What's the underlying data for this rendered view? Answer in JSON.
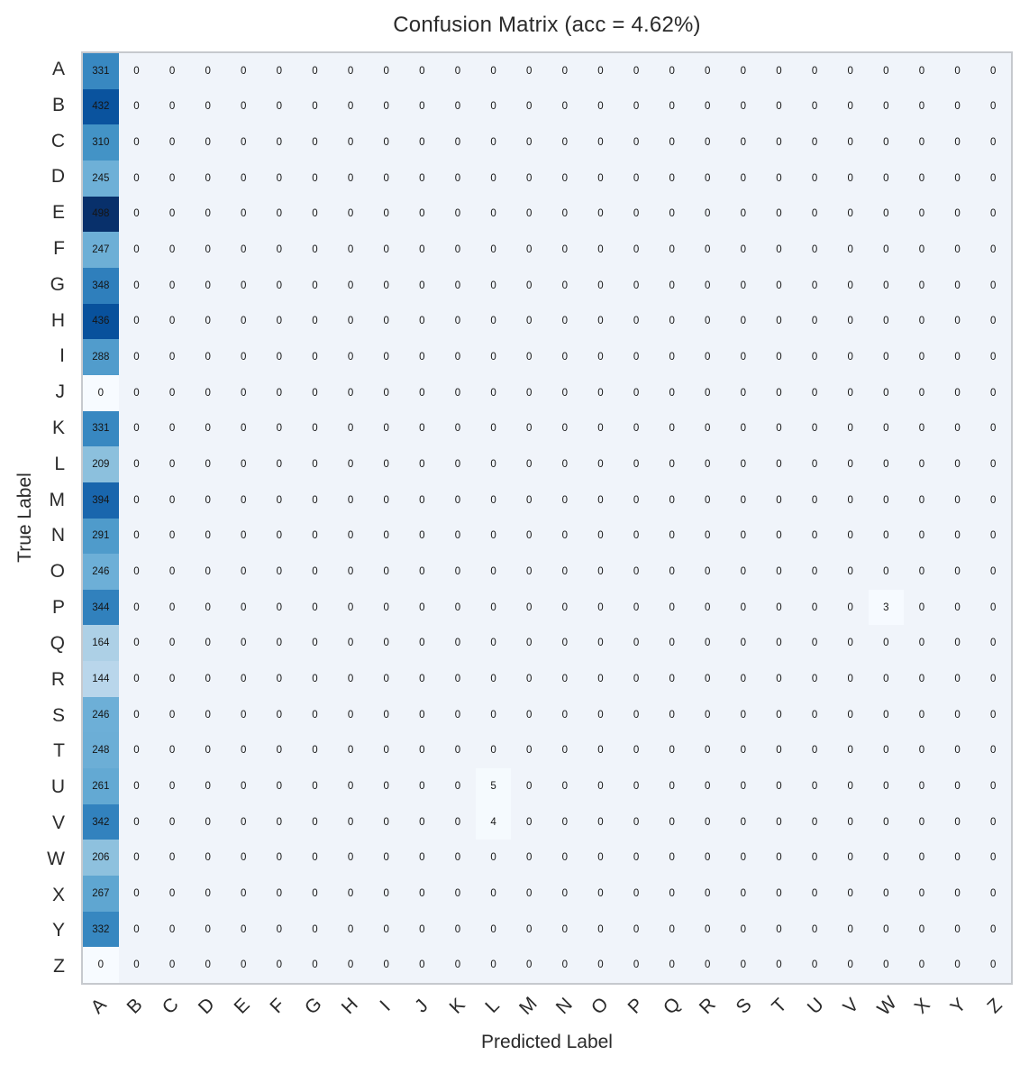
{
  "chart_data": {
    "type": "heatmap",
    "title": "Confusion Matrix (acc = 4.62%)",
    "xlabel": "Predicted Label",
    "ylabel": "True Label",
    "labels": [
      "A",
      "B",
      "C",
      "D",
      "E",
      "F",
      "G",
      "H",
      "I",
      "J",
      "K",
      "L",
      "M",
      "N",
      "O",
      "P",
      "Q",
      "R",
      "S",
      "T",
      "U",
      "V",
      "W",
      "X",
      "Y",
      "Z"
    ],
    "colormap": "Blues",
    "vmin": 0,
    "vmax": 498,
    "accuracy_percent": 4.62,
    "first_column_values": [
      331,
      432,
      310,
      245,
      498,
      247,
      348,
      436,
      288,
      0,
      331,
      209,
      394,
      291,
      246,
      344,
      164,
      144,
      246,
      248,
      261,
      342,
      206,
      267,
      332,
      0
    ],
    "extra_cells": [
      {
        "row": "P",
        "col": "W",
        "value": 3
      },
      {
        "row": "U",
        "col": "L",
        "value": 5
      },
      {
        "row": "V",
        "col": "L",
        "value": 4
      }
    ],
    "default_value": 0,
    "legend_position": "none",
    "grid": false
  },
  "colors": {
    "zero_field": "#f0f4fa",
    "spine": "#c6c9ce",
    "tick_text": "#2b2b2b",
    "annotation_text": "#151515",
    "colormap_low": "#f7fbff",
    "colormap_high": "#08306b"
  }
}
